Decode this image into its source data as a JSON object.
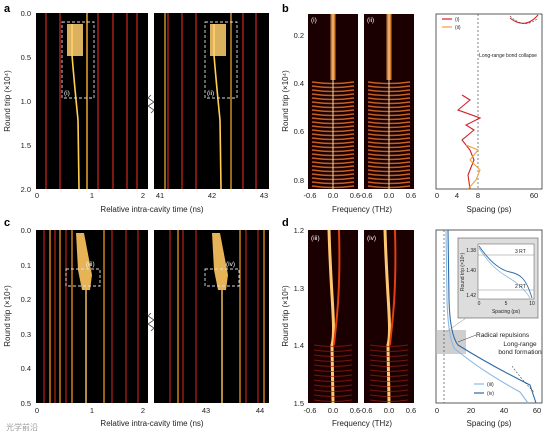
{
  "panels": {
    "a": {
      "label": "a",
      "ylabel": "Round trip (×10⁴)",
      "xlabel": "Relative intra-cavity time (ns)",
      "yticks": [
        "0.0",
        "0.5",
        "1.0",
        "1.5",
        "2.0"
      ],
      "xticks_left": [
        "0",
        "1",
        "2"
      ],
      "xticks_right": [
        "41",
        "42",
        "43"
      ],
      "box_labels": [
        "(i)",
        "(ii)"
      ]
    },
    "b": {
      "label": "b",
      "sub_labels": [
        "(i)",
        "(ii)"
      ],
      "ylabel": "Round trip (×10⁴)",
      "yticks": [
        "0.2",
        "0.4",
        "0.6",
        "0.8"
      ],
      "freq_xlabel": "Frequency (THz)",
      "freq_xticks": [
        "-0.6",
        "0.0",
        "0.6"
      ],
      "spacing_xlabel": "Spacing (ps)",
      "spacing_xticks": [
        "0",
        "4",
        "8",
        "60"
      ],
      "legend": [
        "(i)",
        "(ii)"
      ],
      "annotation": "Long-range bond collapse"
    },
    "c": {
      "label": "c",
      "ylabel": "Round trip (×10⁴)",
      "xlabel": "Relative intra-cavity time (ns)",
      "yticks": [
        "0.0",
        "0.1",
        "0.2",
        "0.3",
        "0.4",
        "0.5"
      ],
      "xticks_left": [
        "0",
        "1",
        "2"
      ],
      "xticks_right": [
        "43",
        "44"
      ],
      "box_labels": [
        "(iii)",
        "(iv)"
      ]
    },
    "d": {
      "label": "d",
      "sub_labels": [
        "(iii)",
        "(iv)"
      ],
      "ylabel": "Round trip (×10⁵)",
      "yticks": [
        "1.2",
        "1.3",
        "1.4",
        "1.5"
      ],
      "freq_xlabel": "Frequency (THz)",
      "freq_xticks": [
        "-0.6",
        "0.0",
        "0.6"
      ],
      "spacing_xlabel": "Spacing (ps)",
      "spacing_xticks": [
        "0",
        "20",
        "40",
        "60"
      ],
      "legend": [
        "(iii)",
        "(iv)"
      ],
      "inset": {
        "ylabel": "Round trip (×10⁵)",
        "yticks": [
          "1.38",
          "1.40",
          "1.42"
        ],
        "xlabel": "Spacing (ps)",
        "xticks": [
          "0",
          "5",
          "10"
        ],
        "marks": [
          "3 RT",
          "2 RT"
        ]
      },
      "annotations": [
        "Radical repulsions",
        "Long-range bond formation"
      ]
    }
  },
  "watermark": "光学前沿"
}
